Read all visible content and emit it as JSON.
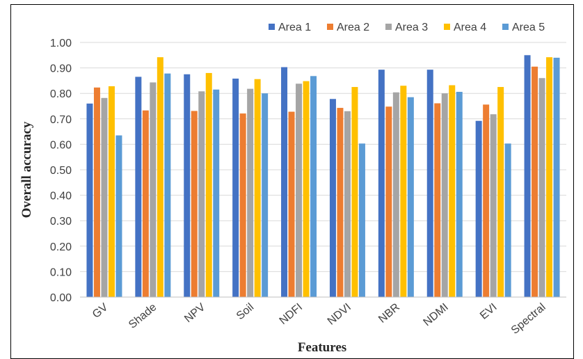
{
  "chart_data": {
    "type": "bar",
    "xlabel": "Features",
    "ylabel": "Overall accuracy",
    "ylim": [
      0,
      1
    ],
    "yticks": [
      "0.00",
      "0.10",
      "0.20",
      "0.30",
      "0.40",
      "0.50",
      "0.60",
      "0.70",
      "0.80",
      "0.90",
      "1.00"
    ],
    "categories": [
      "GV",
      "Shade",
      "NPV",
      "Soil",
      "NDFI",
      "NDVI",
      "NBR",
      "NDMI",
      "EVI",
      "Spectral"
    ],
    "legend_position": "top-right",
    "grid": true,
    "series": [
      {
        "name": "Area 1",
        "color": "#4472C4",
        "values": [
          0.76,
          0.865,
          0.875,
          0.858,
          0.903,
          0.778,
          0.893,
          0.893,
          0.692,
          0.95
        ]
      },
      {
        "name": "Area 2",
        "color": "#ED7D31",
        "values": [
          0.823,
          0.733,
          0.731,
          0.721,
          0.728,
          0.743,
          0.748,
          0.761,
          0.756,
          0.905
        ]
      },
      {
        "name": "Area 3",
        "color": "#A5A5A5",
        "values": [
          0.782,
          0.843,
          0.808,
          0.818,
          0.838,
          0.73,
          0.804,
          0.8,
          0.718,
          0.86
        ]
      },
      {
        "name": "Area 4",
        "color": "#FFC000",
        "values": [
          0.828,
          0.942,
          0.88,
          0.856,
          0.848,
          0.825,
          0.83,
          0.832,
          0.825,
          0.942
        ]
      },
      {
        "name": "Area 5",
        "color": "#5B9BD5",
        "values": [
          0.635,
          0.878,
          0.815,
          0.8,
          0.868,
          0.603,
          0.785,
          0.806,
          0.603,
          0.94
        ]
      }
    ]
  }
}
